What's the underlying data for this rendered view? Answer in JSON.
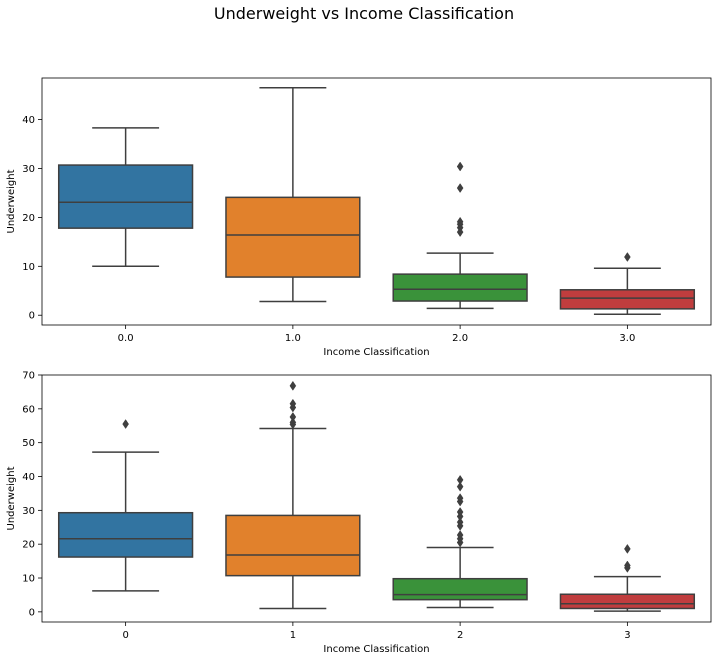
{
  "figure": {
    "title": "Underweight vs Income Classification"
  },
  "chart_data": [
    {
      "type": "box",
      "xlabel": "Income Classification",
      "ylabel": "Underweight",
      "categories": [
        "0.0",
        "1.0",
        "2.0",
        "3.0"
      ],
      "ylim": [
        -2,
        48.5
      ],
      "yticks": [
        0,
        10,
        20,
        30,
        40
      ],
      "boxes": [
        {
          "category": "0.0",
          "color": "#3274a1",
          "whisker_low": 10.0,
          "q1": 17.8,
          "median": 23.1,
          "q3": 30.7,
          "whisker_high": 38.3,
          "outliers": []
        },
        {
          "category": "1.0",
          "color": "#e1812c",
          "whisker_low": 2.8,
          "q1": 7.8,
          "median": 16.4,
          "q3": 24.1,
          "whisker_high": 46.5,
          "outliers": []
        },
        {
          "category": "2.0",
          "color": "#3a923a",
          "whisker_low": 1.4,
          "q1": 2.9,
          "median": 5.3,
          "q3": 8.4,
          "whisker_high": 12.7,
          "outliers": [
            17.0,
            17.9,
            18.6,
            19.1,
            26.0,
            30.4
          ]
        },
        {
          "category": "3.0",
          "color": "#c03d3e",
          "whisker_low": 0.2,
          "q1": 1.3,
          "median": 3.5,
          "q3": 5.2,
          "whisker_high": 9.6,
          "outliers": [
            11.9
          ]
        }
      ]
    },
    {
      "type": "box",
      "xlabel": "Income Classification",
      "ylabel": "Underweight",
      "categories": [
        "0",
        "1",
        "2",
        "3"
      ],
      "ylim": [
        -3,
        70
      ],
      "yticks": [
        0,
        10,
        20,
        30,
        40,
        50,
        60,
        70
      ],
      "boxes": [
        {
          "category": "0",
          "color": "#3274a1",
          "whisker_low": 6.2,
          "q1": 16.2,
          "median": 21.6,
          "q3": 29.3,
          "whisker_high": 47.2,
          "outliers": [
            55.5
          ]
        },
        {
          "category": "1",
          "color": "#e1812c",
          "whisker_low": 1.0,
          "q1": 10.7,
          "median": 16.8,
          "q3": 28.5,
          "whisker_high": 54.2,
          "outliers": [
            55.4,
            56.0,
            57.6,
            60.4,
            61.5,
            66.8
          ]
        },
        {
          "category": "2",
          "color": "#3a923a",
          "whisker_low": 1.3,
          "q1": 3.6,
          "median": 5.1,
          "q3": 9.8,
          "whisker_high": 19.0,
          "outliers": [
            20.5,
            21.6,
            22.7,
            25.4,
            26.5,
            28.2,
            29.5,
            32.6,
            33.6,
            37.0,
            39.0
          ]
        },
        {
          "category": "3",
          "color": "#c03d3e",
          "whisker_low": 0.2,
          "q1": 1.0,
          "median": 2.4,
          "q3": 5.2,
          "whisker_high": 10.4,
          "outliers": [
            13.0,
            13.7,
            18.6
          ]
        }
      ]
    }
  ]
}
